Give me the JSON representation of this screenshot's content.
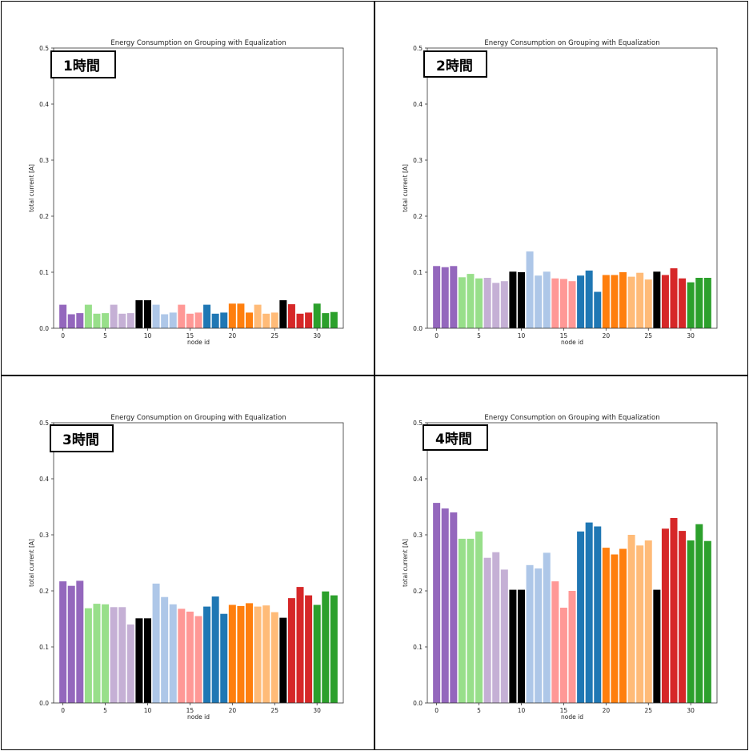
{
  "colors": {
    "purple": "#9467bd",
    "light_green": "#98df8a",
    "light_purple": "#c5b0d5",
    "black": "#000000",
    "light_blue": "#aec7e8",
    "light_red": "#ff9896",
    "blue": "#1f77b4",
    "orange": "#ff7f0e",
    "light_orange": "#ffbb78",
    "red": "#d62728",
    "green": "#2ca02c"
  },
  "bar_colors": [
    "#9467bd",
    "#9467bd",
    "#9467bd",
    "#98df8a",
    "#98df8a",
    "#98df8a",
    "#c5b0d5",
    "#c5b0d5",
    "#c5b0d5",
    "#000000",
    "#000000",
    "#aec7e8",
    "#aec7e8",
    "#aec7e8",
    "#ff9896",
    "#ff9896",
    "#ff9896",
    "#1f77b4",
    "#1f77b4",
    "#1f77b4",
    "#ff7f0e",
    "#ff7f0e",
    "#ff7f0e",
    "#ffbb78",
    "#ffbb78",
    "#ffbb78",
    "#000000",
    "#d62728",
    "#d62728",
    "#d62728",
    "#2ca02c",
    "#2ca02c",
    "#2ca02c"
  ],
  "chart_data": [
    {
      "type": "bar",
      "badge": "1時間",
      "title": "Energy Consumption on Grouping with Equalization",
      "xlabel": "node id",
      "ylabel": "total current [A]",
      "ylim": [
        0,
        0.5
      ],
      "yticks": [
        "0.0",
        "0.1",
        "0.2",
        "0.3",
        "0.4",
        "0.5"
      ],
      "xticks": [
        "0",
        "5",
        "10",
        "15",
        "20",
        "25",
        "30"
      ],
      "x": [
        0,
        1,
        2,
        3,
        4,
        5,
        6,
        7,
        8,
        9,
        10,
        11,
        12,
        13,
        14,
        15,
        16,
        17,
        18,
        19,
        20,
        21,
        22,
        23,
        24,
        25,
        26,
        27,
        28,
        29,
        30,
        31,
        32
      ],
      "values": [
        0.042,
        0.025,
        0.027,
        0.042,
        0.026,
        0.027,
        0.042,
        0.026,
        0.027,
        0.05,
        0.05,
        0.042,
        0.025,
        0.028,
        0.042,
        0.026,
        0.028,
        0.042,
        0.026,
        0.028,
        0.044,
        0.044,
        0.028,
        0.042,
        0.026,
        0.028,
        0.05,
        0.043,
        0.026,
        0.028,
        0.044,
        0.027,
        0.029
      ],
      "grid": false
    },
    {
      "type": "bar",
      "badge": "2時間",
      "title": "Energy Consumption on Grouping with Equalization",
      "xlabel": "node id",
      "ylabel": "total current [A]",
      "ylim": [
        0,
        0.5
      ],
      "yticks": [
        "0.0",
        "0.1",
        "0.2",
        "0.3",
        "0.4",
        "0.5"
      ],
      "xticks": [
        "0",
        "5",
        "10",
        "15",
        "20",
        "25",
        "30"
      ],
      "x": [
        0,
        1,
        2,
        3,
        4,
        5,
        6,
        7,
        8,
        9,
        10,
        11,
        12,
        13,
        14,
        15,
        16,
        17,
        18,
        19,
        20,
        21,
        22,
        23,
        24,
        25,
        26,
        27,
        28,
        29,
        30,
        31,
        32
      ],
      "values": [
        0.111,
        0.109,
        0.111,
        0.091,
        0.097,
        0.089,
        0.09,
        0.081,
        0.084,
        0.101,
        0.1,
        0.137,
        0.094,
        0.101,
        0.089,
        0.088,
        0.084,
        0.094,
        0.103,
        0.065,
        0.095,
        0.095,
        0.1,
        0.092,
        0.099,
        0.087,
        0.101,
        0.095,
        0.107,
        0.089,
        0.082,
        0.09,
        0.09
      ],
      "grid": false
    },
    {
      "type": "bar",
      "badge": "3時間",
      "title": "Energy Consumption on Grouping with Equalization",
      "xlabel": "node id",
      "ylabel": "total current [A]",
      "ylim": [
        0,
        0.5
      ],
      "yticks": [
        "0.0",
        "0.1",
        "0.2",
        "0.3",
        "0.4",
        "0.5"
      ],
      "xticks": [
        "0",
        "5",
        "10",
        "15",
        "20",
        "25",
        "30"
      ],
      "x": [
        0,
        1,
        2,
        3,
        4,
        5,
        6,
        7,
        8,
        9,
        10,
        11,
        12,
        13,
        14,
        15,
        16,
        17,
        18,
        19,
        20,
        21,
        22,
        23,
        24,
        25,
        26,
        27,
        28,
        29,
        30,
        31,
        32
      ],
      "values": [
        0.217,
        0.209,
        0.218,
        0.169,
        0.177,
        0.176,
        0.171,
        0.171,
        0.14,
        0.151,
        0.151,
        0.213,
        0.189,
        0.176,
        0.168,
        0.163,
        0.155,
        0.172,
        0.19,
        0.159,
        0.175,
        0.173,
        0.178,
        0.172,
        0.174,
        0.162,
        0.152,
        0.187,
        0.207,
        0.192,
        0.175,
        0.199,
        0.192
      ],
      "grid": false
    },
    {
      "type": "bar",
      "badge": "4時間",
      "title": "Energy Consumption on Grouping with Equalization",
      "xlabel": "node id",
      "ylabel": "total current [A]",
      "ylim": [
        0,
        0.5
      ],
      "yticks": [
        "0.0",
        "0.1",
        "0.2",
        "0.3",
        "0.4",
        "0.5"
      ],
      "xticks": [
        "0",
        "5",
        "10",
        "15",
        "20",
        "25",
        "30"
      ],
      "x": [
        0,
        1,
        2,
        3,
        4,
        5,
        6,
        7,
        8,
        9,
        10,
        11,
        12,
        13,
        14,
        15,
        16,
        17,
        18,
        19,
        20,
        21,
        22,
        23,
        24,
        25,
        26,
        27,
        28,
        29,
        30,
        31,
        32
      ],
      "values": [
        0.357,
        0.347,
        0.34,
        0.293,
        0.293,
        0.306,
        0.259,
        0.269,
        0.238,
        0.202,
        0.202,
        0.246,
        0.24,
        0.268,
        0.217,
        0.17,
        0.2,
        0.306,
        0.322,
        0.315,
        0.277,
        0.265,
        0.275,
        0.3,
        0.281,
        0.29,
        0.202,
        0.311,
        0.33,
        0.307,
        0.29,
        0.319,
        0.289
      ],
      "grid": false
    }
  ]
}
